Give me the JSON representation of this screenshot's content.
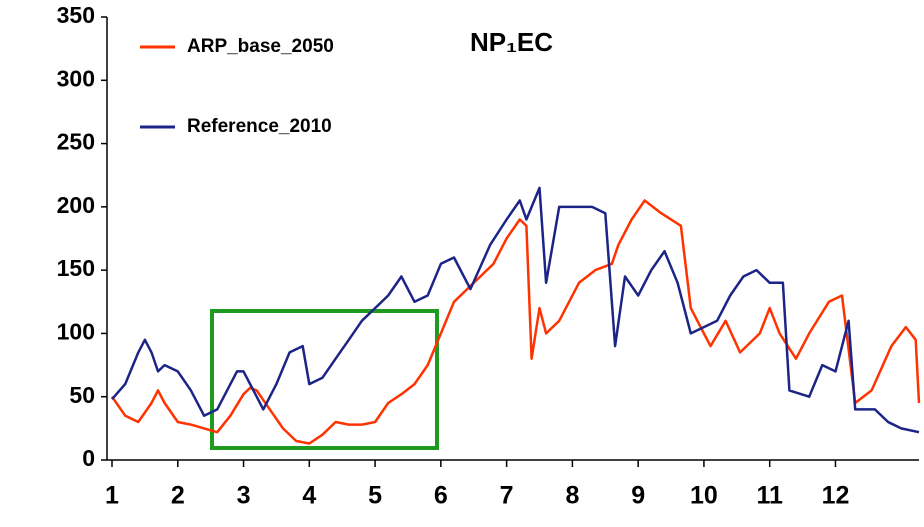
{
  "chart_data": {
    "type": "line",
    "title": "NP₁EC",
    "xlim": [
      1,
      13.27
    ],
    "xticks": [
      1,
      2,
      3,
      4,
      5,
      6,
      7,
      8,
      9,
      10,
      11,
      12
    ],
    "ylim": [
      0,
      350
    ],
    "yticks": [
      0,
      50,
      100,
      150,
      200,
      250,
      300,
      350
    ],
    "legend": "top-left",
    "series": [
      {
        "name": "ARP_base_2050",
        "color": "#ff3300",
        "x": [
          1,
          1.2,
          1.4,
          1.6,
          1.7,
          1.8,
          2,
          2.2,
          2.4,
          2.6,
          2.8,
          3,
          3.1,
          3.2,
          3.4,
          3.6,
          3.8,
          4,
          4.2,
          4.4,
          4.6,
          4.8,
          5,
          5.2,
          5.4,
          5.6,
          5.8,
          6,
          6.2,
          6.4,
          6.6,
          6.8,
          7,
          7.2,
          7.3,
          7.38,
          7.5,
          7.6,
          7.8,
          8.1,
          8.35,
          8.6,
          8.7,
          8.9,
          9.1,
          9.35,
          9.65,
          9.8,
          9.95,
          10.1,
          10.33,
          10.55,
          10.85,
          11,
          11.15,
          11.4,
          11.6,
          11.9,
          12.1,
          12.3,
          12.55,
          12.85,
          13.07,
          13.22,
          13.27
        ],
        "values": [
          50,
          35,
          30,
          45,
          55,
          45,
          30,
          28,
          25,
          22,
          35,
          52,
          57,
          55,
          40,
          25,
          15,
          13,
          20,
          30,
          28,
          28,
          30,
          45,
          52,
          60,
          75,
          100,
          125,
          135,
          145,
          155,
          175,
          190,
          185,
          80,
          120,
          100,
          110,
          140,
          150,
          155,
          170,
          190,
          205,
          195,
          185,
          120,
          105,
          90,
          110,
          85,
          100,
          120,
          100,
          80,
          100,
          125,
          130,
          45,
          55,
          90,
          105,
          95,
          45
        ]
      },
      {
        "name": "Reference_2010",
        "color": "#1c2587",
        "x": [
          1,
          1.2,
          1.4,
          1.5,
          1.6,
          1.7,
          1.8,
          2,
          2.2,
          2.4,
          2.6,
          2.8,
          2.9,
          3,
          3.2,
          3.3,
          3.5,
          3.7,
          3.9,
          4,
          4.2,
          4.4,
          4.6,
          4.8,
          5,
          5.2,
          5.4,
          5.6,
          5.8,
          6,
          6.2,
          6.45,
          6.75,
          7,
          7.2,
          7.3,
          7.5,
          7.6,
          7.8,
          8,
          8.3,
          8.5,
          8.65,
          8.8,
          9,
          9.2,
          9.4,
          9.6,
          9.8,
          10,
          10.2,
          10.4,
          10.6,
          10.8,
          11,
          11.2,
          11.3,
          11.6,
          11.8,
          12,
          12.2,
          12.3,
          12.6,
          12.8,
          13,
          13.27
        ],
        "values": [
          48,
          60,
          85,
          95,
          85,
          70,
          75,
          70,
          55,
          35,
          40,
          60,
          70,
          70,
          50,
          40,
          60,
          85,
          90,
          60,
          65,
          80,
          95,
          110,
          120,
          130,
          145,
          125,
          130,
          155,
          160,
          135,
          170,
          190,
          205,
          190,
          215,
          140,
          200,
          200,
          200,
          195,
          90,
          145,
          130,
          150,
          165,
          140,
          100,
          105,
          110,
          130,
          145,
          150,
          140,
          140,
          55,
          50,
          75,
          70,
          110,
          40,
          40,
          30,
          25,
          22
        ]
      }
    ]
  }
}
